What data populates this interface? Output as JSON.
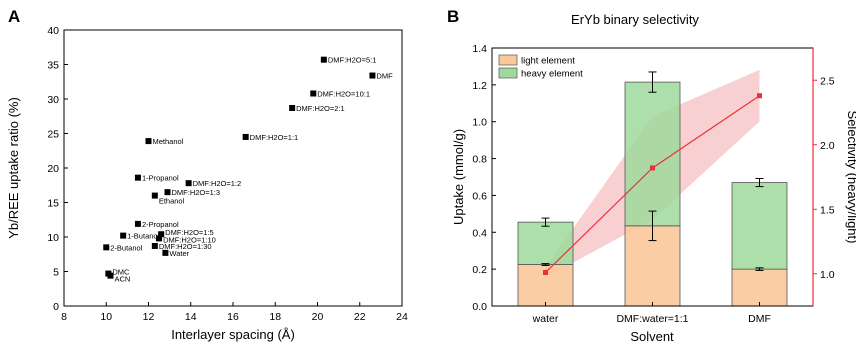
{
  "chart_data": [
    {
      "panel": "A",
      "type": "scatter",
      "title": "",
      "xlabel": "Interlayer spacing (Å)",
      "ylabel": "Yb/REE uptake ratio (%)",
      "xlim": [
        8,
        24
      ],
      "ylim": [
        0,
        40
      ],
      "xticks": [
        8,
        10,
        12,
        14,
        16,
        18,
        20,
        22,
        24
      ],
      "yticks": [
        0,
        5,
        10,
        15,
        20,
        25,
        30,
        35,
        40
      ],
      "grid": false,
      "marker_color": "#000000",
      "points": [
        {
          "label": "DMF:H2O=5:1",
          "x": 20.3,
          "y": 35.7
        },
        {
          "label": "DMF",
          "x": 22.6,
          "y": 33.4
        },
        {
          "label": "DMF:H2O=10:1",
          "x": 19.8,
          "y": 30.8
        },
        {
          "label": "DMF:H2O=2:1",
          "x": 18.8,
          "y": 28.7
        },
        {
          "label": "DMF:H2O=1:1",
          "x": 16.6,
          "y": 24.5
        },
        {
          "label": "Methanol",
          "x": 12.0,
          "y": 23.9
        },
        {
          "label": "1-Propanol",
          "x": 11.5,
          "y": 18.6
        },
        {
          "label": "DMF:H2O=1:2",
          "x": 13.9,
          "y": 17.8
        },
        {
          "label": "DMF:H2O=1:3",
          "x": 12.9,
          "y": 16.5
        },
        {
          "label": "Ethanol",
          "x": 12.3,
          "y": 16.0
        },
        {
          "label": "2-Propanol",
          "x": 11.5,
          "y": 11.9
        },
        {
          "label": "DMF:H2O=1:5",
          "x": 12.6,
          "y": 10.4
        },
        {
          "label": "1-Butanol",
          "x": 10.8,
          "y": 10.2
        },
        {
          "label": "DMF:H2O=1:10",
          "x": 12.5,
          "y": 9.8
        },
        {
          "label": "2-Butanol",
          "x": 10.0,
          "y": 8.5
        },
        {
          "label": "DMF:H2O=1:30",
          "x": 12.3,
          "y": 8.7
        },
        {
          "label": "Water",
          "x": 12.8,
          "y": 7.7
        },
        {
          "label": "DMC",
          "x": 10.1,
          "y": 4.7
        },
        {
          "label": "ACN",
          "x": 10.2,
          "y": 4.4
        }
      ]
    },
    {
      "panel": "B",
      "type": "bar",
      "title": "ErYb binary selectivity",
      "xlabel": "Solvent",
      "ylabel": "Uptake (mmol/g)",
      "y2label": "Selectivity (heavy/light)",
      "categories": [
        "water",
        "DMF:water=1:1",
        "DMF"
      ],
      "ylim": [
        0,
        1.4
      ],
      "yticks": [
        0.0,
        0.2,
        0.4,
        0.6,
        0.8,
        1.0,
        1.2,
        1.4
      ],
      "y2lim": [
        0.75,
        2.75
      ],
      "y2ticks": [
        1.0,
        1.5,
        2.0,
        2.5
      ],
      "stacked": true,
      "legend_position": "top-left",
      "series": [
        {
          "name": "light element",
          "color": "#fbc89a",
          "values": [
            0.225,
            0.435,
            0.2
          ],
          "errors": [
            0.005,
            0.08,
            0.007
          ]
        },
        {
          "name": "heavy element",
          "color": "#9fd99c",
          "totals": [
            0.455,
            1.215,
            0.67
          ],
          "errors": [
            0.022,
            0.055,
            0.022
          ]
        }
      ],
      "selectivity": {
        "color": "#e8323a",
        "band_color": "#f7c0c3",
        "values": [
          1.01,
          1.82,
          2.38
        ],
        "band_lower": [
          0.97,
          1.42,
          2.18
        ],
        "band_upper": [
          1.05,
          2.22,
          2.58
        ]
      }
    }
  ]
}
